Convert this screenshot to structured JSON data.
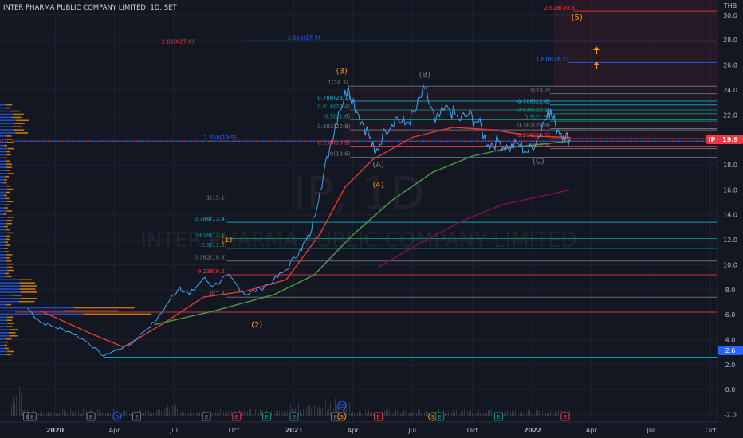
{
  "header": {
    "title": "INTER PHARMA PUBLIC COMPANY LIMITED, 1D, SET"
  },
  "watermark": {
    "ticker": "IP, 1D",
    "company": "INTER PHARMA PUBLIC COMPANY LIMITED"
  },
  "currency": "THB",
  "price_tag": {
    "symbol": "IP",
    "value": "19.9"
  },
  "low_tag": "2.6",
  "colors": {
    "background": "#131722",
    "price_red": "#f23645",
    "fib_blue": "#2962ff",
    "fib_cyan": "#00bcd4",
    "fib_green": "#089981",
    "fib_gray": "#787b86",
    "wave_orange": "#ff9800",
    "ma_red": "#e53935",
    "ma_green": "#43a047",
    "ma_maroon": "#880e4f"
  },
  "chart_data": {
    "type": "line",
    "title": "INTER PHARMA PUBLIC COMPANY LIMITED, 1D, SET",
    "x_ticks": [
      "2020",
      "Apr",
      "Jul",
      "Oct",
      "2021",
      "Apr",
      "Jul",
      "Oct",
      "2022",
      "Apr",
      "Jul",
      "Oct"
    ],
    "y_ticks": [
      "30.0",
      "28.0",
      "26.0",
      "24.0",
      "22.0",
      "20.0",
      "18.0",
      "16.0",
      "14.0",
      "12.0",
      "10.0",
      "8.0",
      "6.0",
      "4.0",
      "2.0",
      "0.0",
      "-2.0"
    ],
    "ylim": [
      -2.6,
      31.2
    ],
    "x_range": [
      "2019-11",
      "2022-10"
    ],
    "price_series": [
      {
        "date": "2019-11-20",
        "price": 6.5
      },
      {
        "date": "2019-12-10",
        "price": 5.4
      },
      {
        "date": "2020-01-01",
        "price": 5.0
      },
      {
        "date": "2020-01-25",
        "price": 4.6
      },
      {
        "date": "2020-02-20",
        "price": 3.8
      },
      {
        "date": "2020-03-15",
        "price": 2.7
      },
      {
        "date": "2020-04-01",
        "price": 3.1
      },
      {
        "date": "2020-04-25",
        "price": 3.6
      },
      {
        "date": "2020-05-15",
        "price": 4.6
      },
      {
        "date": "2020-06-05",
        "price": 5.6
      },
      {
        "date": "2020-06-25",
        "price": 7.2
      },
      {
        "date": "2020-07-10",
        "price": 8.2
      },
      {
        "date": "2020-07-25",
        "price": 7.6
      },
      {
        "date": "2020-08-15",
        "price": 8.9
      },
      {
        "date": "2020-08-31",
        "price": 8.3
      },
      {
        "date": "2020-09-20",
        "price": 9.1
      },
      {
        "date": "2020-10-05",
        "price": 8.4
      },
      {
        "date": "2020-10-20",
        "price": 7.6
      },
      {
        "date": "2020-11-10",
        "price": 8.1
      },
      {
        "date": "2020-11-30",
        "price": 8.7
      },
      {
        "date": "2020-12-20",
        "price": 9.6
      },
      {
        "date": "2021-01-10",
        "price": 11.2
      },
      {
        "date": "2021-01-25",
        "price": 12.3
      },
      {
        "date": "2021-02-10",
        "price": 16.0
      },
      {
        "date": "2021-02-25",
        "price": 19.5
      },
      {
        "date": "2021-03-10",
        "price": 22.2
      },
      {
        "date": "2021-03-25",
        "price": 24.3
      },
      {
        "date": "2021-04-10",
        "price": 22.0
      },
      {
        "date": "2021-04-25",
        "price": 20.5
      },
      {
        "date": "2021-05-05",
        "price": 18.8
      },
      {
        "date": "2021-05-20",
        "price": 20.8
      },
      {
        "date": "2021-06-05",
        "price": 21.8
      },
      {
        "date": "2021-06-20",
        "price": 21.2
      },
      {
        "date": "2021-07-05",
        "price": 22.2
      },
      {
        "date": "2021-07-20",
        "price": 24.1
      },
      {
        "date": "2021-08-05",
        "price": 21.4
      },
      {
        "date": "2021-08-25",
        "price": 22.6
      },
      {
        "date": "2021-09-10",
        "price": 21.6
      },
      {
        "date": "2021-09-25",
        "price": 22.0
      },
      {
        "date": "2021-10-10",
        "price": 21.4
      },
      {
        "date": "2021-10-25",
        "price": 19.6
      },
      {
        "date": "2021-11-10",
        "price": 19.9
      },
      {
        "date": "2021-11-25",
        "price": 19.3
      },
      {
        "date": "2021-12-10",
        "price": 19.7
      },
      {
        "date": "2021-12-25",
        "price": 19.0
      },
      {
        "date": "2022-01-10",
        "price": 20.2
      },
      {
        "date": "2022-01-25",
        "price": 22.6
      },
      {
        "date": "2022-02-05",
        "price": 21.2
      },
      {
        "date": "2022-02-18",
        "price": 20.4
      },
      {
        "date": "2022-02-28",
        "price": 19.9
      }
    ],
    "moving_averages": [
      {
        "color": "ma_red",
        "points": [
          {
            "date": "2019-12-10",
            "price": 6.3
          },
          {
            "date": "2020-02-20",
            "price": 4.6
          },
          {
            "date": "2020-04-15",
            "price": 3.4
          },
          {
            "date": "2020-06-15",
            "price": 5.3
          },
          {
            "date": "2020-08-15",
            "price": 7.4
          },
          {
            "date": "2020-10-20",
            "price": 7.9
          },
          {
            "date": "2020-12-20",
            "price": 8.8
          },
          {
            "date": "2021-02-10",
            "price": 12.5
          },
          {
            "date": "2021-03-20",
            "price": 16.2
          },
          {
            "date": "2021-05-01",
            "price": 18.4
          },
          {
            "date": "2021-07-01",
            "price": 20.2
          },
          {
            "date": "2021-09-01",
            "price": 21.0
          },
          {
            "date": "2021-11-01",
            "price": 20.8
          },
          {
            "date": "2022-01-01",
            "price": 20.3
          },
          {
            "date": "2022-02-28",
            "price": 20.2
          }
        ]
      },
      {
        "color": "ma_green",
        "points": [
          {
            "date": "2020-06-01",
            "price": 5.2
          },
          {
            "date": "2020-09-01",
            "price": 6.3
          },
          {
            "date": "2020-12-01",
            "price": 7.6
          },
          {
            "date": "2021-02-01",
            "price": 9.2
          },
          {
            "date": "2021-04-01",
            "price": 12.4
          },
          {
            "date": "2021-06-01",
            "price": 15.2
          },
          {
            "date": "2021-08-01",
            "price": 17.4
          },
          {
            "date": "2021-10-01",
            "price": 18.7
          },
          {
            "date": "2021-12-01",
            "price": 19.4
          },
          {
            "date": "2022-02-28",
            "price": 19.9
          }
        ]
      },
      {
        "color": "ma_maroon",
        "points": [
          {
            "date": "2021-05-10",
            "price": 9.8
          },
          {
            "date": "2021-07-15",
            "price": 11.8
          },
          {
            "date": "2021-09-15",
            "price": 13.5
          },
          {
            "date": "2021-11-15",
            "price": 14.8
          },
          {
            "date": "2022-01-15",
            "price": 15.5
          },
          {
            "date": "2022-03-01",
            "price": 16.0
          }
        ]
      }
    ],
    "horizontal_levels": [
      {
        "price": 30.3,
        "color": "price_red",
        "label": "2.618(30.3)",
        "label_date": "2022-03-10",
        "start_date": "2022-03-05"
      },
      {
        "price": 27.9,
        "color": "fib_blue",
        "label": "1.618(27.9)",
        "label_date": "2021-02-10",
        "start_date": "2020-10-15"
      },
      {
        "price": 27.6,
        "color": "price_red",
        "label": "2.618(27.6)",
        "label_date": "2020-08-01",
        "start_date": "2020-08-05"
      },
      {
        "price": 26.2,
        "color": "fib_blue",
        "label": "1.618(26.2)",
        "label_date": "2022-02-25",
        "start_date": "2022-02-25"
      },
      {
        "price": 24.3,
        "color": "fib_gray",
        "label": "1(24.3)",
        "label_date": "2021-03-25",
        "start_date": "2021-03-25"
      },
      {
        "price": 23.7,
        "color": "fib_gray",
        "label": "1(23.7)",
        "label_date": "2022-01-28",
        "start_date": "2022-01-28"
      },
      {
        "price": 23.1,
        "color": "fib_cyan",
        "label": "0.786(23.1)",
        "label_date": "2021-03-28",
        "start_date": "2021-03-28"
      },
      {
        "price": 22.8,
        "color": "fib_cyan",
        "label": "0.786(22.8)",
        "label_date": "2022-01-28",
        "start_date": "2022-01-28"
      },
      {
        "price": 22.4,
        "color": "fib_green",
        "label": "0.618(22.4)",
        "label_date": "2021-03-28",
        "start_date": "2021-03-28"
      },
      {
        "price": 22.1,
        "color": "fib_green",
        "label": "0.618(22.1)",
        "label_date": "2022-01-28",
        "start_date": "2022-01-28"
      },
      {
        "price": 21.6,
        "color": "fib_green",
        "label": "0.5(21.6)",
        "label_date": "2021-03-28",
        "start_date": "2021-03-28"
      },
      {
        "price": 21.5,
        "color": "fib_green",
        "label": "0.5(21.5)",
        "label_date": "2022-01-28",
        "start_date": "2022-01-28"
      },
      {
        "price": 20.8,
        "color": "fib_gray",
        "label": "0.382(20.8)",
        "label_date": "2021-03-28",
        "start_date": "2021-03-28"
      },
      {
        "price": 20.9,
        "color": "fib_gray",
        "label": "0.382(20.9)",
        "label_date": "2022-01-28",
        "start_date": "2022-01-28"
      },
      {
        "price": 19.9,
        "color": "fib_blue",
        "label": "1.618(19.9)",
        "label_date": "2020-10-05",
        "start_date": "2019-11-01"
      },
      {
        "price": 19.5,
        "color": "price_red",
        "label": "0.236(19.5)",
        "label_date": "2021-03-28",
        "start_date": "2021-03-28"
      },
      {
        "price": 20.1,
        "color": "price_red",
        "label": "0.236(20.1)",
        "label_date": "2022-01-28",
        "start_date": "2022-01-28"
      },
      {
        "price": 18.6,
        "color": "fib_gray",
        "label": "0(18.6)",
        "label_date": "2021-03-28",
        "start_date": "2021-03-28"
      },
      {
        "price": 19.3,
        "color": "fib_gray",
        "label": "0(19.3)",
        "label_date": "2022-01-28",
        "start_date": "2022-01-28"
      },
      {
        "price": 15.1,
        "color": "fib_gray",
        "label": "1(15.1)",
        "label_date": "2020-09-20",
        "start_date": "2020-09-20"
      },
      {
        "price": 13.4,
        "color": "fib_cyan",
        "label": "0.786(13.4)",
        "label_date": "2020-09-20",
        "start_date": "2020-09-20"
      },
      {
        "price": 12.1,
        "color": "fib_green",
        "label": "0.618(12.1)",
        "label_date": "2020-09-20",
        "start_date": "2020-09-20"
      },
      {
        "price": 11.3,
        "color": "fib_green",
        "label": "0.5(11.3)",
        "label_date": "2020-09-20",
        "start_date": "2020-09-20"
      },
      {
        "price": 10.3,
        "color": "fib_gray",
        "label": "0.382(10.3)",
        "label_date": "2020-09-20",
        "start_date": "2020-09-20"
      },
      {
        "price": 9.2,
        "color": "price_red",
        "label": "0.236(9.2)",
        "label_date": "2020-09-20",
        "start_date": "2020-09-20"
      },
      {
        "price": 7.4,
        "color": "fib_gray",
        "label": "0(7.4)",
        "label_date": "2020-09-20",
        "start_date": "2020-09-20"
      },
      {
        "price": 6.2,
        "color": "price_red",
        "label": "",
        "label_date": "",
        "start_date": "2019-11-01"
      },
      {
        "price": 2.6,
        "color": "fib_cyan",
        "label": "",
        "label_date": "",
        "start_date": "2020-03-15"
      }
    ],
    "wave_labels": [
      {
        "text": "(1)",
        "date": "2020-09-20",
        "price": 11.8,
        "color": "wave_orange"
      },
      {
        "text": "(2)",
        "date": "2020-11-05",
        "price": 5.0,
        "color": "wave_orange"
      },
      {
        "text": "(3)",
        "date": "2021-03-15",
        "price": 25.3,
        "color": "wave_orange"
      },
      {
        "text": "(4)",
        "date": "2021-05-10",
        "price": 16.2,
        "color": "wave_orange"
      },
      {
        "text": "(5)",
        "date": "2022-03-10",
        "price": 29.6,
        "color": "wave_orange"
      },
      {
        "text": "(A)",
        "date": "2021-05-10",
        "price": 17.8,
        "color": "fib_gray"
      },
      {
        "text": "(B)",
        "date": "2021-07-20",
        "price": 25.0,
        "color": "fib_gray"
      },
      {
        "text": "(C)",
        "date": "2022-01-10",
        "price": 18.1,
        "color": "fib_gray"
      }
    ],
    "event_markers": [
      {
        "letter": "E",
        "date": "2019-11-20",
        "color": "fib_gray"
      },
      {
        "letter": "E",
        "date": "2019-11-27",
        "color": "fib_gray"
      },
      {
        "letter": "E",
        "date": "2020-02-25",
        "color": "fib_gray"
      },
      {
        "letter": "D",
        "date": "2020-04-05",
        "color": "fib_blue"
      },
      {
        "letter": "E",
        "date": "2020-05-05",
        "color": "fib_gray"
      },
      {
        "letter": "E",
        "date": "2020-08-20",
        "color": "fib_gray"
      },
      {
        "letter": "E",
        "date": "2020-10-05",
        "color": "price_red"
      },
      {
        "letter": "E",
        "date": "2020-11-20",
        "color": "fib_green"
      },
      {
        "letter": "E",
        "date": "2021-01-01",
        "color": "fib_green"
      },
      {
        "letter": "E",
        "date": "2021-03-05",
        "color": "fib_gray"
      },
      {
        "letter": "S",
        "date": "2021-03-15",
        "color": "wave_orange"
      },
      {
        "letter": "E",
        "date": "2021-05-10",
        "color": "price_red"
      },
      {
        "letter": "S",
        "date": "2021-08-01",
        "color": "wave_orange"
      },
      {
        "letter": "E",
        "date": "2021-08-12",
        "color": "fib_green"
      },
      {
        "letter": "E",
        "date": "2021-11-10",
        "color": "fib_green"
      },
      {
        "letter": "E",
        "date": "2022-02-20",
        "color": "price_red"
      }
    ],
    "dividend_marker": {
      "letter": "D",
      "date": "2021-03-15"
    }
  }
}
